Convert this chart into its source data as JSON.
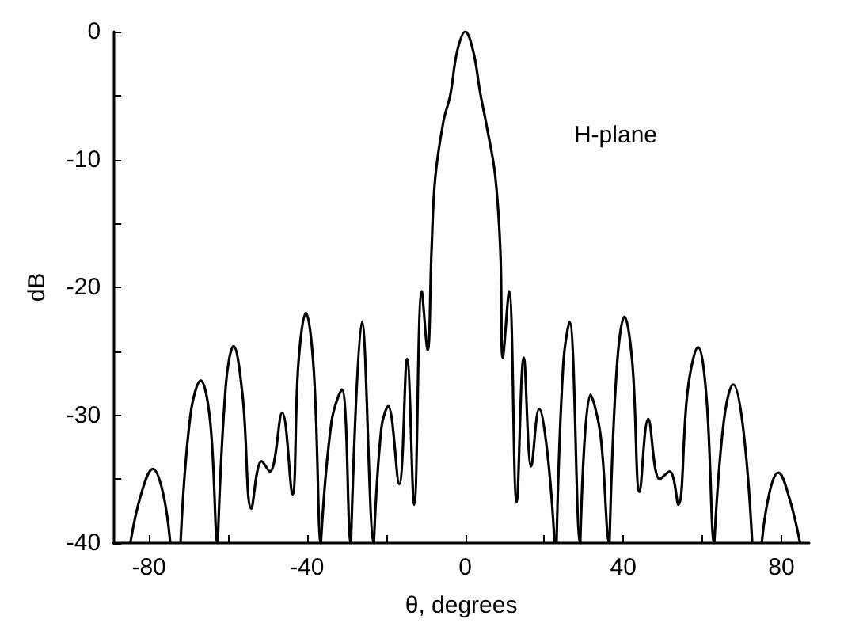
{
  "chart_data": {
    "type": "line",
    "xlabel": "θ, degrees",
    "ylabel": "dB",
    "annotations": [
      "H-plane"
    ],
    "xlim": [
      -89,
      87
    ],
    "xticks": [
      -80,
      {
        "value": -60,
        "label": null
      },
      -40,
      {
        "value": -20,
        "label": null
      },
      0,
      {
        "value": 20,
        "label": null
      },
      40,
      {
        "value": 60,
        "label": null
      },
      80
    ],
    "ylim": [
      -40,
      0
    ],
    "yticks": [
      -40,
      {
        "value": -35,
        "label": null
      },
      -30,
      {
        "value": -25,
        "label": null
      },
      -20,
      {
        "value": -15,
        "label": null
      },
      -10,
      {
        "value": -5,
        "label": null
      },
      0
    ],
    "grid": false,
    "marker": "none",
    "line_style": "solid",
    "series": [
      {
        "color": "#000000",
        "x": [
          -84.7,
          -82,
          -79,
          -76.5,
          -74.6,
          -73.3,
          -72,
          -69.5,
          -66.9,
          -64.5,
          -62.6,
          -62.5,
          -60.5,
          -58.6,
          -56.3,
          -54.1,
          -51.5,
          -49.4,
          -46.3,
          -43.7,
          -42.2,
          -40.3,
          -38.3,
          -36.5,
          -36.4,
          -33.8,
          -31.2,
          -28.9,
          -28.8,
          -26.1,
          -23.1,
          -23,
          -21.2,
          -19.5,
          -16.7,
          -14.7,
          -12.9,
          -11,
          -9.5,
          -8.5,
          -7.6,
          -5.5,
          -3.8,
          -2,
          0,
          2,
          3.8,
          5.5,
          7.6,
          8.9,
          9.5,
          11.1,
          13,
          14.8,
          16.7,
          18.7,
          20.8,
          22.6,
          22.85,
          23.1,
          24.8,
          26.4,
          29.1,
          29.2,
          31.7,
          34.2,
          36.5,
          36.6,
          38.3,
          40.3,
          42.3,
          44.1,
          46.3,
          49.2,
          51.7,
          53.9,
          56.3,
          58.9,
          61,
          63,
          63.1,
          65.4,
          67.8,
          70.3,
          72.6,
          73.8,
          75,
          77,
          79.2,
          82,
          84.7
        ],
        "values": [
          -40,
          -36.2,
          -34.2,
          -36,
          -40,
          null,
          -40,
          -30,
          -27.3,
          -30.5,
          -40,
          -40,
          -27.5,
          -24.6,
          -28.5,
          -37.3,
          -33.6,
          -34.4,
          -29.8,
          -36.2,
          -26,
          -22,
          -26.5,
          -40,
          -40,
          -30.5,
          -28,
          -40,
          -40,
          -22.7,
          -40,
          -40,
          -31,
          -29.3,
          -35.4,
          -25.6,
          -37,
          -20.3,
          -24.9,
          -17,
          -11.5,
          -7,
          -5,
          -1.5,
          0,
          -1.5,
          -4.8,
          -7.5,
          -11.3,
          -17.2,
          -25.5,
          -20.3,
          -36.8,
          -25.5,
          -34,
          -29.5,
          -33,
          -40,
          null,
          -40,
          -26,
          -22.7,
          -40,
          -40,
          -28.4,
          -31.5,
          -40,
          -40,
          -26.5,
          -22.3,
          -26,
          -36,
          -30.3,
          -35,
          -34.4,
          -37,
          -28,
          -24.7,
          -28.5,
          -40,
          -40,
          -30.5,
          -27.6,
          -31,
          -40,
          null,
          -40,
          -36,
          -34.5,
          -36.5,
          -40
        ]
      }
    ]
  }
}
